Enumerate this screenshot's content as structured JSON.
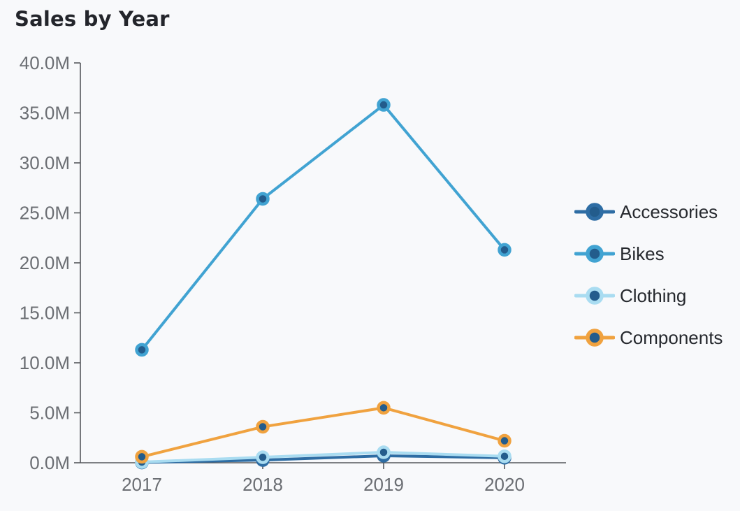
{
  "header": {
    "title": "Sales by Year"
  },
  "chart_data": {
    "type": "line",
    "title": "Sales by Year",
    "categories": [
      "2017",
      "2018",
      "2019",
      "2020"
    ],
    "series": [
      {
        "name": "Accessories",
        "color": "#2e6da4",
        "values": [
          0.03,
          0.27,
          0.7,
          0.5
        ]
      },
      {
        "name": "Bikes",
        "color": "#41a3d2",
        "values": [
          11.3,
          26.4,
          35.8,
          21.3
        ]
      },
      {
        "name": "Clothing",
        "color": "#a9dcf1",
        "values": [
          0.07,
          0.55,
          1.05,
          0.65
        ]
      },
      {
        "name": "Components",
        "color": "#f0a23f",
        "values": [
          0.6,
          3.6,
          5.5,
          2.2
        ]
      }
    ],
    "value_unit": "M",
    "ylabel": "",
    "xlabel": "",
    "ylim": [
      0,
      40
    ],
    "y_tick_labels": [
      "0.0M",
      "5.0M",
      "10.0M",
      "15.0M",
      "20.0M",
      "25.0M",
      "30.0M",
      "35.0M",
      "40.0M"
    ],
    "grid": false,
    "legend_position": "right",
    "marker_fill": "#235c8c",
    "axis_color": "#55585c",
    "tick_label_color": "#6b6e73",
    "background": "#f8f9fb"
  }
}
